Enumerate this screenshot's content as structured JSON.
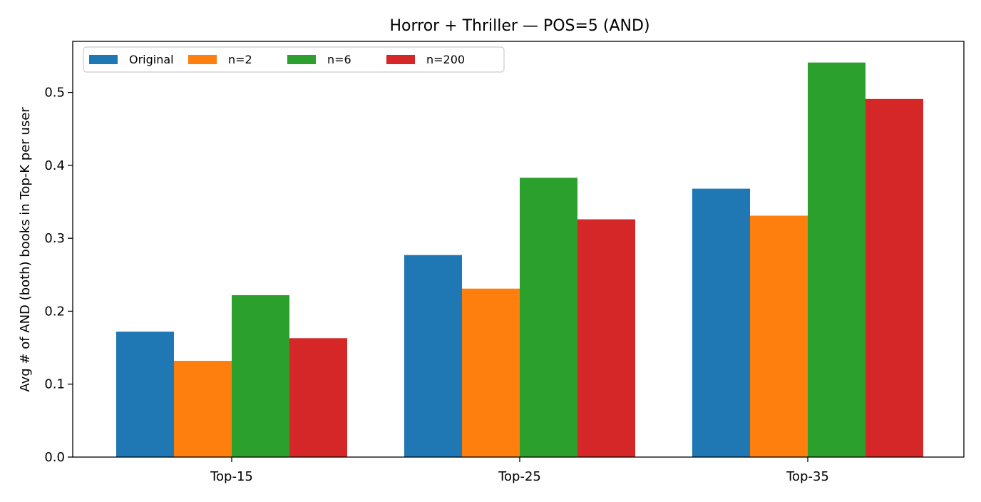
{
  "chart_data": {
    "type": "bar",
    "title": "Horror + Thriller — POS=5 (AND)",
    "xlabel": "",
    "ylabel": "Avg # of AND (both) books in Top-K per user",
    "categories": [
      "Top-15",
      "Top-25",
      "Top-35"
    ],
    "ylim": [
      0,
      0.57
    ],
    "yticks": [
      0.0,
      0.1,
      0.2,
      0.3,
      0.4,
      0.5
    ],
    "ytick_labels": [
      "0.0",
      "0.1",
      "0.2",
      "0.3",
      "0.4",
      "0.5"
    ],
    "grid": false,
    "legend_placement": "top-left",
    "series": [
      {
        "name": "Original",
        "color": "#1f77b4",
        "values": [
          0.172,
          0.277,
          0.368
        ]
      },
      {
        "name": "n=2",
        "color": "#ff7f0e",
        "values": [
          0.132,
          0.231,
          0.331
        ]
      },
      {
        "name": "n=6",
        "color": "#2ca02c",
        "values": [
          0.222,
          0.383,
          0.541
        ]
      },
      {
        "name": "n=200",
        "color": "#d62728",
        "values": [
          0.163,
          0.326,
          0.491
        ]
      }
    ]
  }
}
